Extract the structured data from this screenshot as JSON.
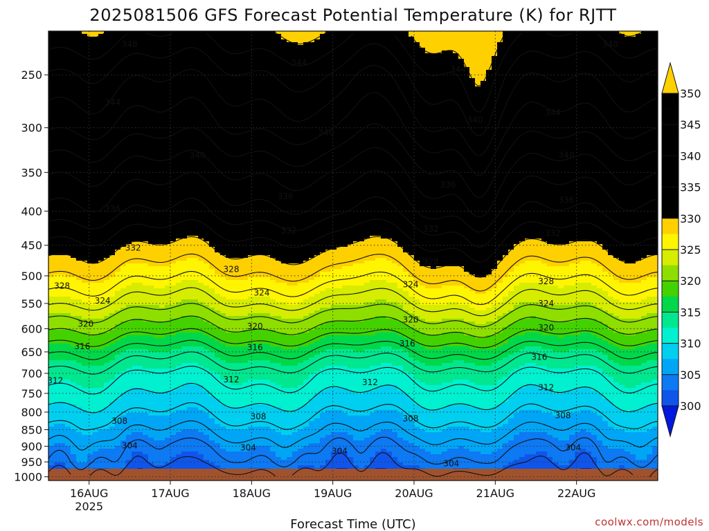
{
  "chart_data": {
    "type": "heatmap",
    "title": "2025081506 GFS Forecast Potential Temperature (K) for RJTT",
    "xlabel": "Forecast Time (UTC)",
    "ylabel": "",
    "credit": "coolwx.com/models",
    "x_ticks": [
      {
        "label": "16AUG",
        "sub": "2025",
        "t": 18
      },
      {
        "label": "17AUG",
        "sub": "",
        "t": 42
      },
      {
        "label": "18AUG",
        "sub": "",
        "t": 66
      },
      {
        "label": "19AUG",
        "sub": "",
        "t": 90
      },
      {
        "label": "20AUG",
        "sub": "",
        "t": 114
      },
      {
        "label": "21AUG",
        "sub": "",
        "t": 138
      },
      {
        "label": "22AUG",
        "sub": "",
        "t": 162
      }
    ],
    "xlim_hours_from_15aug00z": [
      6,
      186
    ],
    "y_ticks": [
      1000,
      950,
      900,
      850,
      800,
      750,
      700,
      650,
      600,
      550,
      500,
      450,
      400,
      350,
      300,
      250
    ],
    "ylim_hpa": [
      1013,
      215
    ],
    "y_scale": "log",
    "grid": true,
    "colorbar": {
      "levels": [
        300,
        305,
        310,
        315,
        320,
        325,
        330,
        335,
        340,
        345,
        350
      ],
      "colors": [
        "#0019dd",
        "#0f55ea",
        "#0d79f2",
        "#00a6f5",
        "#00cff0",
        "#00f0d0",
        "#00e78f",
        "#00d84a",
        "#43d200",
        "#8ede00",
        "#d6ec00",
        "#fff500",
        "#ffd000"
      ],
      "extend": "both",
      "labels": [
        "300",
        "305",
        "310",
        "315",
        "320",
        "325",
        "330",
        "335",
        "340",
        "345",
        "350"
      ]
    },
    "contour_interval_k": 2,
    "profile": [
      {
        "p": 1000,
        "theta": 300.5
      },
      {
        "p": 950,
        "theta": 303.0
      },
      {
        "p": 900,
        "theta": 304.5
      },
      {
        "p": 850,
        "theta": 306.5
      },
      {
        "p": 800,
        "theta": 308.5
      },
      {
        "p": 750,
        "theta": 310.5
      },
      {
        "p": 700,
        "theta": 312.5
      },
      {
        "p": 650,
        "theta": 315.5
      },
      {
        "p": 600,
        "theta": 319.5
      },
      {
        "p": 550,
        "theta": 323.5
      },
      {
        "p": 500,
        "theta": 327.0
      },
      {
        "p": 450,
        "theta": 330.5
      },
      {
        "p": 400,
        "theta": 334.5
      },
      {
        "p": 350,
        "theta": 337.5
      },
      {
        "p": 300,
        "theta": 341.5
      },
      {
        "p": 250,
        "theta": 345.0
      },
      {
        "p": 215,
        "theta": 349.0
      }
    ],
    "contour_labels": [
      {
        "value": "348",
        "t": 30,
        "p": 225
      },
      {
        "value": "348",
        "t": 172,
        "p": 225
      },
      {
        "value": "344",
        "t": 80,
        "p": 240
      },
      {
        "value": "344",
        "t": 127,
        "p": 245
      },
      {
        "value": "344",
        "t": 25,
        "p": 275
      },
      {
        "value": "344",
        "t": 155,
        "p": 285
      },
      {
        "value": "340",
        "t": 132,
        "p": 292
      },
      {
        "value": "340",
        "t": 88,
        "p": 305
      },
      {
        "value": "340",
        "t": 50,
        "p": 330
      },
      {
        "value": "340",
        "t": 159,
        "p": 330
      },
      {
        "value": "336",
        "t": 124,
        "p": 365
      },
      {
        "value": "336",
        "t": 76,
        "p": 380
      },
      {
        "value": "336",
        "t": 159,
        "p": 385
      },
      {
        "value": "336",
        "t": 25,
        "p": 397
      },
      {
        "value": "332",
        "t": 77,
        "p": 428
      },
      {
        "value": "332",
        "t": 119,
        "p": 425
      },
      {
        "value": "332",
        "t": 155,
        "p": 432
      },
      {
        "value": "332",
        "t": 31,
        "p": 454
      },
      {
        "value": "328",
        "t": 119,
        "p": 476
      },
      {
        "value": "328",
        "t": 60,
        "p": 489
      },
      {
        "value": "328",
        "t": 10,
        "p": 518
      },
      {
        "value": "328",
        "t": 153,
        "p": 510
      },
      {
        "value": "324",
        "t": 113,
        "p": 515
      },
      {
        "value": "324",
        "t": 69,
        "p": 530
      },
      {
        "value": "324",
        "t": 22,
        "p": 545
      },
      {
        "value": "324",
        "t": 153,
        "p": 550
      },
      {
        "value": "320",
        "t": 113,
        "p": 582
      },
      {
        "value": "320",
        "t": 67,
        "p": 595
      },
      {
        "value": "320",
        "t": 17,
        "p": 590
      },
      {
        "value": "320",
        "t": 153,
        "p": 598
      },
      {
        "value": "316",
        "t": 112,
        "p": 632
      },
      {
        "value": "316",
        "t": 67,
        "p": 640
      },
      {
        "value": "316",
        "t": 16,
        "p": 638
      },
      {
        "value": "316",
        "t": 151,
        "p": 662
      },
      {
        "value": "312",
        "t": 8,
        "p": 718
      },
      {
        "value": "312",
        "t": 60,
        "p": 715
      },
      {
        "value": "312",
        "t": 101,
        "p": 722
      },
      {
        "value": "312",
        "t": 153,
        "p": 735
      },
      {
        "value": "308",
        "t": 27,
        "p": 825
      },
      {
        "value": "308",
        "t": 68,
        "p": 812
      },
      {
        "value": "308",
        "t": 113,
        "p": 818
      },
      {
        "value": "308",
        "t": 158,
        "p": 810
      },
      {
        "value": "304",
        "t": 30,
        "p": 898
      },
      {
        "value": "304",
        "t": 65,
        "p": 904
      },
      {
        "value": "304",
        "t": 92,
        "p": 915
      },
      {
        "value": "304",
        "t": 125,
        "p": 955
      },
      {
        "value": "304",
        "t": 161,
        "p": 904
      }
    ]
  }
}
